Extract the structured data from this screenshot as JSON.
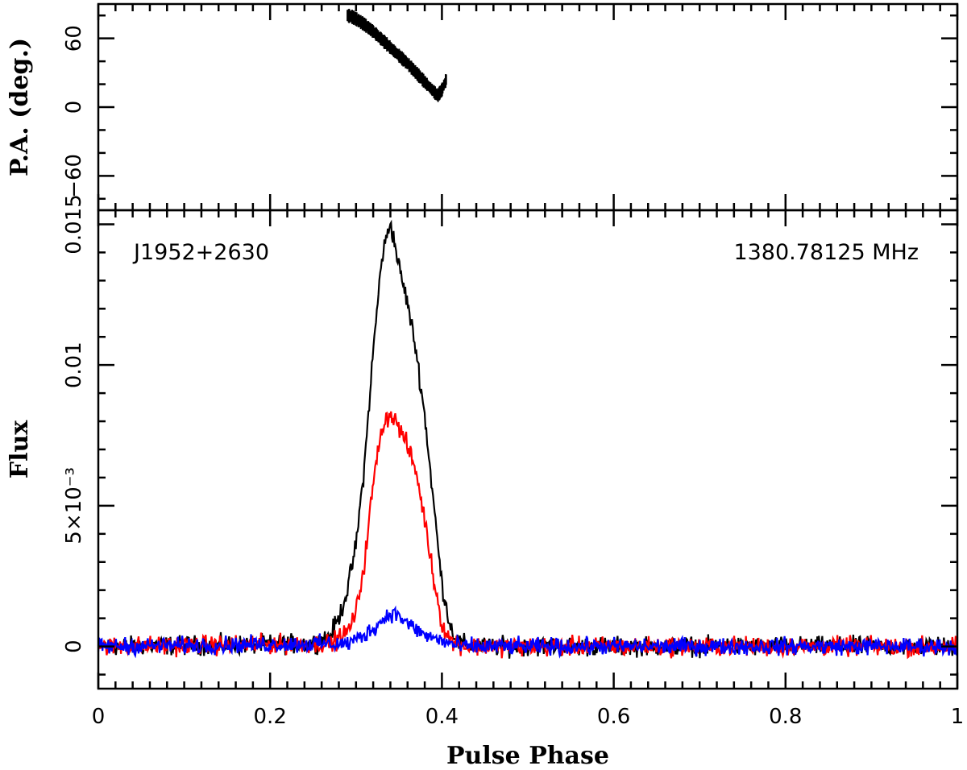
{
  "chart_data": [
    {
      "panel": "position-angle",
      "type": "scatter",
      "ylabel": "P.A. (deg.)",
      "xlim": [
        0,
        1
      ],
      "ylim": [
        -90,
        90
      ],
      "yticks": [
        -60,
        0,
        60
      ],
      "ytick_labels": [
        "−60",
        "0",
        "60"
      ],
      "series": [
        {
          "color": "#000000",
          "x": [
            0.29,
            0.295,
            0.3,
            0.31,
            0.32,
            0.33,
            0.34,
            0.35,
            0.36,
            0.37,
            0.38,
            0.39,
            0.395,
            0.4,
            0.405
          ],
          "y": [
            80,
            79,
            77,
            72,
            66,
            59,
            52,
            45,
            38,
            30,
            22,
            14,
            10,
            15,
            24
          ]
        }
      ]
    },
    {
      "panel": "profile",
      "type": "line",
      "xlabel": "Pulse Phase",
      "ylabel": "Flux",
      "xlim": [
        0,
        1
      ],
      "ylim": [
        -0.0015,
        0.0155
      ],
      "xticks": [
        0,
        0.2,
        0.4,
        0.6,
        0.8,
        1
      ],
      "xtick_labels": [
        "0",
        "0.2",
        "0.4",
        "0.6",
        "0.8",
        "1"
      ],
      "yticks": [
        0,
        0.005,
        0.01,
        0.015
      ],
      "ytick_labels": [
        "0",
        "5×10⁻³",
        "0.01",
        "0.015"
      ],
      "annotations": {
        "source": "J1952+2630",
        "frequency": "1380.78125 MHz"
      },
      "series": [
        {
          "color": "#000000",
          "noise": 0.00025,
          "x": [
            0,
            0.25,
            0.27,
            0.28,
            0.29,
            0.3,
            0.31,
            0.32,
            0.33,
            0.34,
            0.35,
            0.36,
            0.37,
            0.38,
            0.39,
            0.4,
            0.41,
            0.42,
            0.45,
            1.0
          ],
          "y": [
            0.0,
            0.0001,
            0.0004,
            0.001,
            0.002,
            0.0036,
            0.0065,
            0.0105,
            0.0138,
            0.0151,
            0.0135,
            0.0122,
            0.0105,
            0.0082,
            0.0052,
            0.0022,
            0.0007,
            0.0001,
            0.0,
            0.0
          ]
        },
        {
          "color": "#ff0000",
          "noise": 0.00025,
          "x": [
            0,
            0.27,
            0.29,
            0.3,
            0.31,
            0.32,
            0.33,
            0.34,
            0.35,
            0.36,
            0.37,
            0.38,
            0.39,
            0.4,
            0.41,
            0.43,
            1.0
          ],
          "y": [
            0.0,
            0.0001,
            0.0005,
            0.0012,
            0.003,
            0.0058,
            0.0078,
            0.0083,
            0.0078,
            0.0071,
            0.0062,
            0.0045,
            0.0025,
            0.0008,
            0.0002,
            0.0,
            0.0
          ]
        },
        {
          "color": "#0000ff",
          "noise": 0.00022,
          "x": [
            0,
            0.29,
            0.31,
            0.33,
            0.34,
            0.35,
            0.36,
            0.38,
            0.4,
            0.42,
            1.0
          ],
          "y": [
            0.0,
            0.0001,
            0.0004,
            0.0009,
            0.0012,
            0.0011,
            0.0008,
            0.0004,
            0.0002,
            0.0,
            0.0
          ]
        }
      ]
    }
  ]
}
